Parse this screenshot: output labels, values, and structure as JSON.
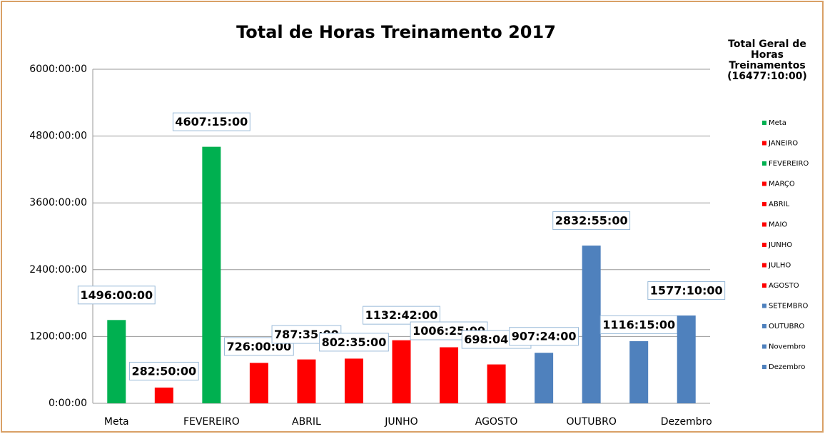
{
  "chart_data": {
    "type": "bar",
    "title": "Total de Horas Treinamento 2017",
    "side_title": "Total Geral de Horas Treinamentos (16477:10:00)",
    "categories": [
      "Meta",
      null,
      "FEVEREIRO",
      null,
      "ABRIL",
      null,
      "JUNHO",
      null,
      "AGOSTO",
      null,
      "OUTUBRO",
      null,
      "Dezembro"
    ],
    "legend_names": [
      "Meta",
      "JANEIRO",
      "FEVEREIRO",
      "MARÇO",
      "ABRIL",
      "MAIO",
      "JUNHO",
      "JULHO",
      "AGOSTO",
      "SETEMBRO",
      "OUTUBRO",
      "Novembro",
      "Dezembro"
    ],
    "values": [
      1496,
      282.8333,
      4607.25,
      726,
      787.5833,
      802.5833,
      1132.7,
      1006.4167,
      698.0667,
      907.4,
      2832.9167,
      1116.25,
      1577.1667
    ],
    "value_labels": [
      "1496:00:00",
      "282:50:00",
      "4607:15:00",
      "726:00:00",
      "787:35:00",
      "802:35:00",
      "1132:42:00",
      "1006:25:00",
      "698:04:00",
      "907:24:00",
      "2832:55:00",
      "1116:15:00",
      "1577:10:00"
    ],
    "colors": [
      "#00b050",
      "#ff0000",
      "#00b050",
      "#ff0000",
      "#ff0000",
      "#ff0000",
      "#ff0000",
      "#ff0000",
      "#ff0000",
      "#4f81bd",
      "#4f81bd",
      "#4f81bd",
      "#4f81bd"
    ],
    "ylim": [
      0,
      6000
    ],
    "yticks": [
      {
        "value": 0,
        "label": "0:00:00"
      },
      {
        "value": 1200,
        "label": "1200:00:00"
      },
      {
        "value": 2400,
        "label": "2400:00:00"
      },
      {
        "value": 3600,
        "label": "3600:00:00"
      },
      {
        "value": 4800,
        "label": "4800:00:00"
      },
      {
        "value": 6000,
        "label": "6000:00:00"
      }
    ],
    "grid": true
  }
}
